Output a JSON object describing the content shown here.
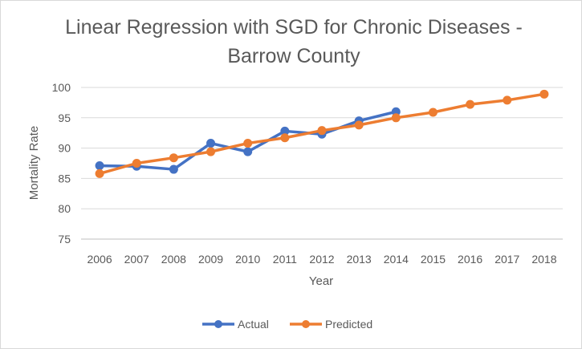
{
  "chart_data": {
    "type": "line",
    "title_lines": [
      "Linear Regression with SGD for Chronic Diseases -",
      "Barrow County"
    ],
    "xlabel": "Year",
    "ylabel": "Mortality Rate",
    "categories": [
      "2006",
      "2007",
      "2008",
      "2009",
      "2010",
      "2011",
      "2012",
      "2013",
      "2014",
      "2015",
      "2016",
      "2017",
      "2018"
    ],
    "ylim": [
      75,
      100
    ],
    "yticks": [
      75,
      80,
      85,
      90,
      95,
      100
    ],
    "grid": true,
    "legend_position": "bottom",
    "series": [
      {
        "name": "Actual",
        "color": "#4472C4",
        "values": [
          87.1,
          87.0,
          86.5,
          90.8,
          89.4,
          92.8,
          92.3,
          94.5,
          96.0,
          null,
          null,
          null,
          null
        ]
      },
      {
        "name": "Predicted",
        "color": "#ED7D31",
        "values": [
          85.8,
          87.5,
          88.4,
          89.4,
          90.8,
          91.7,
          92.9,
          93.8,
          95.0,
          95.9,
          97.2,
          97.9,
          98.9
        ]
      }
    ]
  }
}
